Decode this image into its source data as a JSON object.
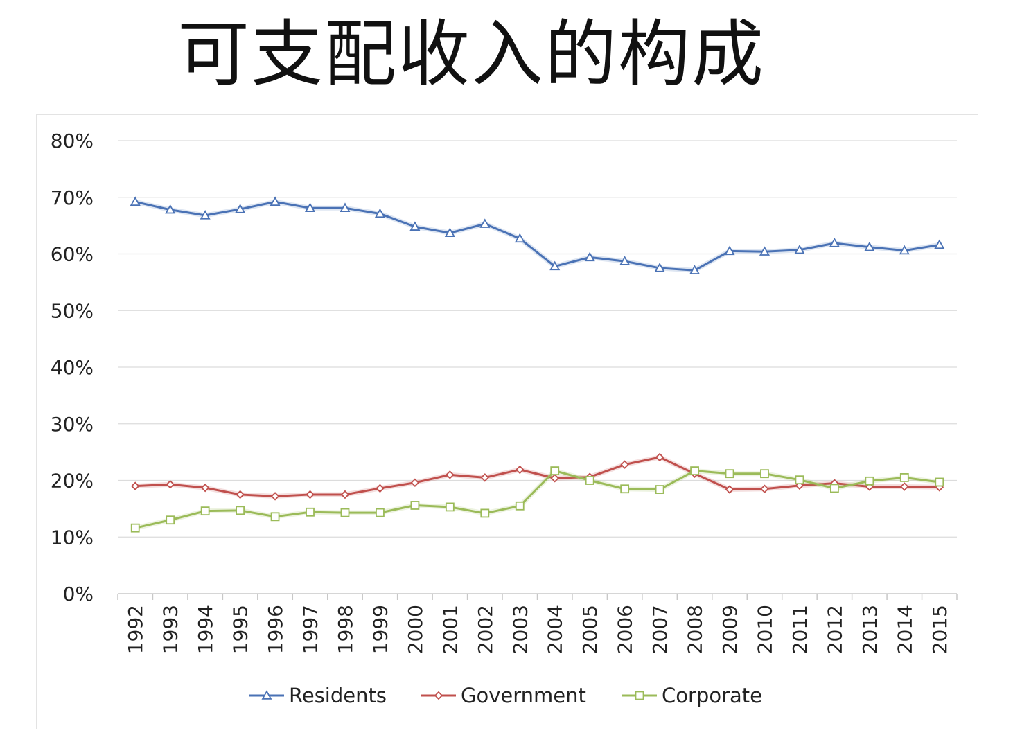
{
  "title": "可支配收入的构成",
  "chart_data": {
    "type": "line",
    "title": "",
    "xlabel": "",
    "ylabel": "",
    "ylim": [
      0,
      80
    ],
    "y_ticks": [
      "0%",
      "10%",
      "20%",
      "30%",
      "40%",
      "50%",
      "60%",
      "70%",
      "80%"
    ],
    "grid": true,
    "legend_position": "bottom",
    "categories": [
      "1992",
      "1993",
      "1994",
      "1995",
      "1996",
      "1997",
      "1998",
      "1999",
      "2000",
      "2001",
      "2002",
      "2003",
      "2004",
      "2005",
      "2006",
      "2007",
      "2008",
      "2009",
      "2010",
      "2011",
      "2012",
      "2013",
      "2014",
      "2015"
    ],
    "series": [
      {
        "name": "Residents",
        "color": "#4a72b5",
        "marker": "triangle",
        "values": [
          69.2,
          67.8,
          66.8,
          67.9,
          69.2,
          68.1,
          68.1,
          67.1,
          64.8,
          63.7,
          65.3,
          62.7,
          57.8,
          59.4,
          58.7,
          57.5,
          57.1,
          60.5,
          60.4,
          60.7,
          61.9,
          61.2,
          60.6,
          61.6
        ]
      },
      {
        "name": "Government",
        "color": "#c0504d",
        "marker": "diamond",
        "values": [
          19.0,
          19.3,
          18.7,
          17.5,
          17.2,
          17.5,
          17.5,
          18.6,
          19.6,
          21.0,
          20.5,
          21.9,
          20.4,
          20.6,
          22.8,
          24.1,
          21.2,
          18.4,
          18.5,
          19.1,
          19.5,
          18.9,
          18.9,
          18.8
        ]
      },
      {
        "name": "Corporate",
        "color": "#9bbb59",
        "marker": "square",
        "values": [
          11.6,
          13.0,
          14.6,
          14.7,
          13.6,
          14.4,
          14.3,
          14.3,
          15.6,
          15.3,
          14.2,
          15.5,
          21.7,
          20.0,
          18.5,
          18.4,
          21.7,
          21.2,
          21.2,
          20.1,
          18.6,
          19.9,
          20.5,
          19.7
        ]
      }
    ]
  }
}
